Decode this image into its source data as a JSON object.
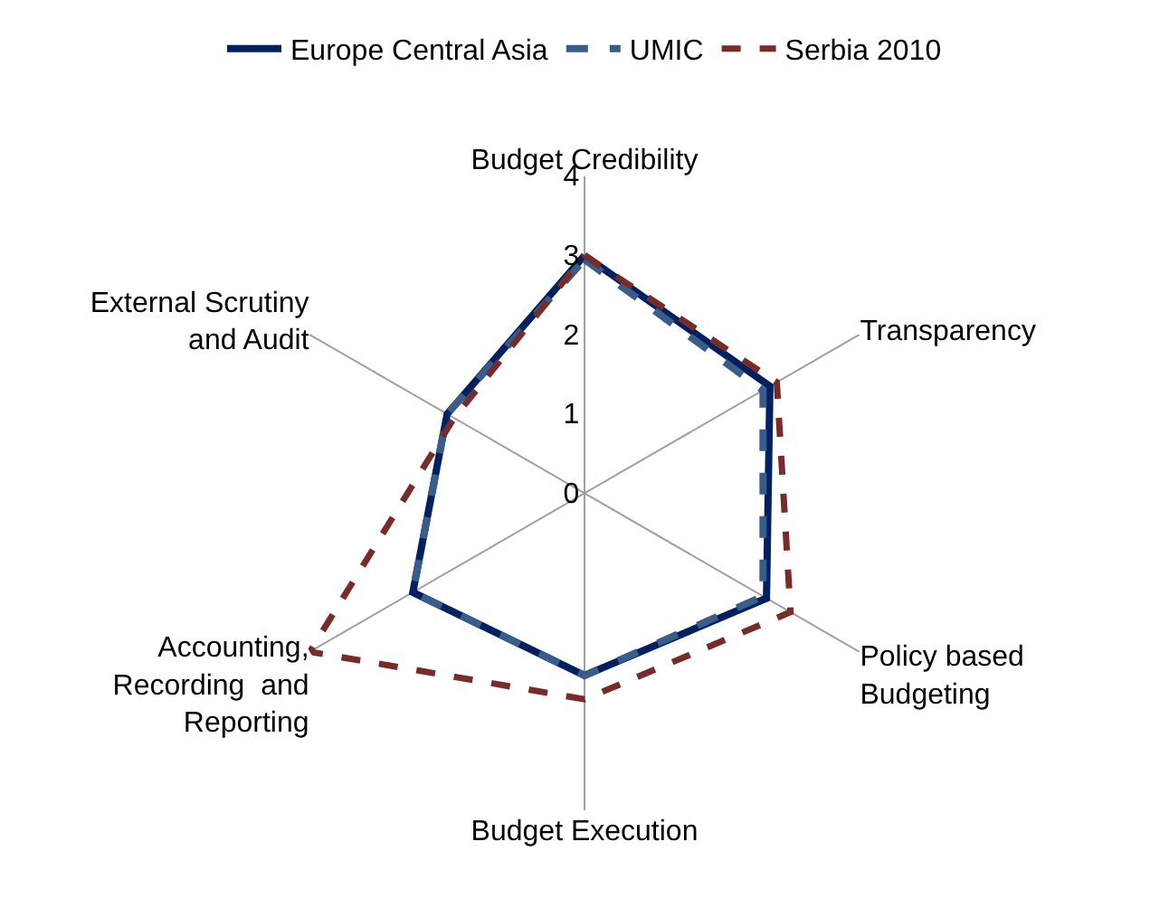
{
  "chart_data": {
    "type": "radar",
    "categories": [
      "Budget Credibility",
      "Transparency",
      "Policy based\nBudgeting",
      "Budget Execution",
      "Accounting,\nRecording  and\nReporting",
      "External Scrutiny\nand Audit"
    ],
    "series": [
      {
        "name": "Europe Central Asia",
        "color": "#002060",
        "line_style": "solid",
        "values": [
          3.0,
          2.7,
          2.65,
          2.3,
          2.5,
          2.0
        ]
      },
      {
        "name": "UMIC",
        "color": "#385d8a",
        "line_style": "dashed",
        "values": [
          2.95,
          2.6,
          2.6,
          2.3,
          2.5,
          2.0
        ]
      },
      {
        "name": "Serbia 2010",
        "color": "#772c2a",
        "line_style": "dashed",
        "values": [
          3.0,
          2.8,
          3.0,
          2.6,
          4.0,
          1.9
        ]
      }
    ],
    "ylim": [
      0,
      4
    ],
    "yticks": [
      0,
      1,
      2,
      3,
      4
    ],
    "grid": "x",
    "legend": "top",
    "marker": "none"
  }
}
